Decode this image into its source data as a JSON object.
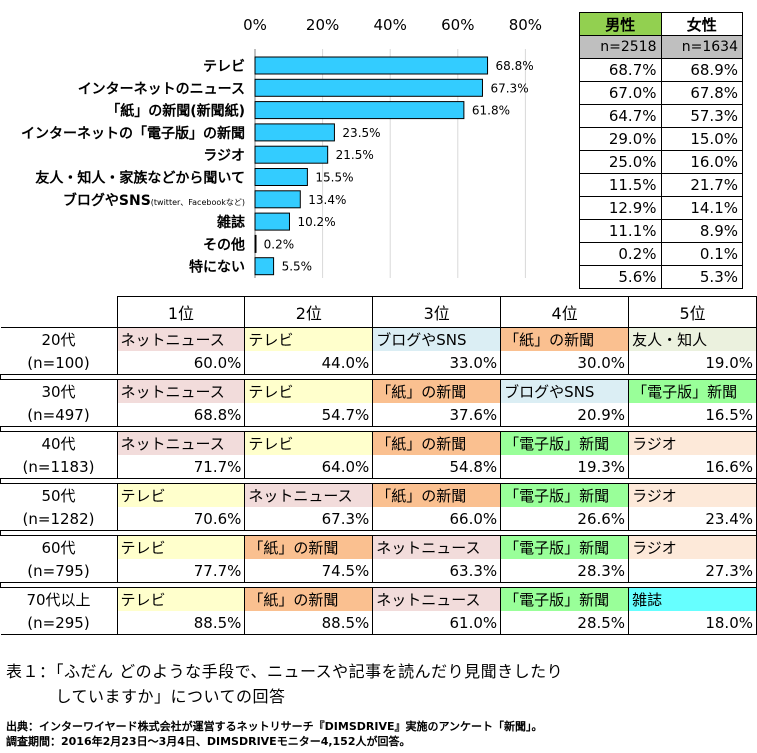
{
  "chart_data": {
    "type": "bar",
    "orientation": "horizontal",
    "x_ticks": [
      "0%",
      "20%",
      "40%",
      "60%",
      "80%"
    ],
    "xlim": [
      0,
      80
    ],
    "categories": [
      "テレビ",
      "インターネットのニュース",
      "「紙」の新聞(新聞紙)",
      "インターネットの「電子版」の新聞",
      "ラジオ",
      "友人・知人・家族などから聞いて",
      "ブログやSNS",
      "雑誌",
      "その他",
      "特にない"
    ],
    "category_note": {
      "index": 6,
      "text": "(twitter、Facebookなど)"
    },
    "values": [
      68.8,
      67.3,
      61.8,
      23.5,
      21.5,
      15.5,
      13.4,
      10.2,
      0.2,
      5.5
    ],
    "value_labels": [
      "68.8%",
      "67.3%",
      "61.8%",
      "23.5%",
      "21.5%",
      "15.5%",
      "13.4%",
      "10.2%",
      "0.2%",
      "5.5%"
    ],
    "bar_color": "#33ccff",
    "grid": true
  },
  "gender_table": {
    "headers": [
      "男性",
      "女性"
    ],
    "n": [
      "n=2518",
      "n=1634"
    ],
    "rows": [
      [
        "68.7%",
        "68.9%"
      ],
      [
        "67.0%",
        "67.8%"
      ],
      [
        "64.7%",
        "57.3%"
      ],
      [
        "29.0%",
        "15.0%"
      ],
      [
        "25.0%",
        "16.0%"
      ],
      [
        "11.5%",
        "21.7%"
      ],
      [
        "12.9%",
        "14.1%"
      ],
      [
        "11.1%",
        "8.9%"
      ],
      [
        "0.2%",
        "0.1%"
      ],
      [
        "5.6%",
        "5.3%"
      ]
    ],
    "header_male_color": "#92d050",
    "n_row_color": "#bfbfbf"
  },
  "age_table": {
    "headers": [
      "1位",
      "2位",
      "3位",
      "4位",
      "5位"
    ],
    "rows": [
      {
        "age": "20代",
        "n": "(n=100)",
        "cells": [
          {
            "label": "ネットニュース",
            "value": "60.0%",
            "color": "#f2dcdb"
          },
          {
            "label": "テレビ",
            "value": "44.0%",
            "color": "#ffffcc"
          },
          {
            "label": "ブログやSNS",
            "value": "33.0%",
            "color": "#dbeef4"
          },
          {
            "label": "「紙」の新聞",
            "value": "30.0%",
            "color": "#fac090"
          },
          {
            "label": "友人・知人",
            "value": "19.0%",
            "color": "#ebf1de"
          }
        ]
      },
      {
        "age": "30代",
        "n": "(n=497)",
        "cells": [
          {
            "label": "ネットニュース",
            "value": "68.8%",
            "color": "#f2dcdb"
          },
          {
            "label": "テレビ",
            "value": "54.7%",
            "color": "#ffffcc"
          },
          {
            "label": "「紙」の新聞",
            "value": "37.6%",
            "color": "#fac090"
          },
          {
            "label": "ブログやSNS",
            "value": "20.9%",
            "color": "#dbeef4"
          },
          {
            "label": "「電子版」新聞",
            "value": "16.5%",
            "color": "#99ff99"
          }
        ]
      },
      {
        "age": "40代",
        "n": "(n=1183)",
        "cells": [
          {
            "label": "ネットニュース",
            "value": "71.7%",
            "color": "#f2dcdb"
          },
          {
            "label": "テレビ",
            "value": "64.0%",
            "color": "#ffffcc"
          },
          {
            "label": "「紙」の新聞",
            "value": "54.8%",
            "color": "#fac090"
          },
          {
            "label": "「電子版」新聞",
            "value": "19.3%",
            "color": "#99ff99"
          },
          {
            "label": "ラジオ",
            "value": "16.6%",
            "color": "#fde9d9"
          }
        ]
      },
      {
        "age": "50代",
        "n": "(n=1282)",
        "cells": [
          {
            "label": "テレビ",
            "value": "70.6%",
            "color": "#ffffcc"
          },
          {
            "label": "ネットニュース",
            "value": "67.3%",
            "color": "#f2dcdb"
          },
          {
            "label": "「紙」の新聞",
            "value": "66.0%",
            "color": "#fac090"
          },
          {
            "label": "「電子版」新聞",
            "value": "26.6%",
            "color": "#99ff99"
          },
          {
            "label": "ラジオ",
            "value": "23.4%",
            "color": "#fde9d9"
          }
        ]
      },
      {
        "age": "60代",
        "n": "(n=795)",
        "cells": [
          {
            "label": "テレビ",
            "value": "77.7%",
            "color": "#ffffcc"
          },
          {
            "label": "「紙」の新聞",
            "value": "74.5%",
            "color": "#fac090"
          },
          {
            "label": "ネットニュース",
            "value": "63.3%",
            "color": "#f2dcdb"
          },
          {
            "label": "「電子版」新聞",
            "value": "28.3%",
            "color": "#99ff99"
          },
          {
            "label": "ラジオ",
            "value": "27.3%",
            "color": "#fde9d9"
          }
        ]
      },
      {
        "age": "70代以上",
        "n": "(n=295)",
        "cells": [
          {
            "label": "テレビ",
            "value": "88.5%",
            "color": "#ffffcc"
          },
          {
            "label": "「紙」の新聞",
            "value": "88.5%",
            "color": "#fac090"
          },
          {
            "label": "ネットニュース",
            "value": "61.0%",
            "color": "#f2dcdb"
          },
          {
            "label": "「電子版」新聞",
            "value": "28.5%",
            "color": "#99ff99"
          },
          {
            "label": "雑誌",
            "value": "18.0%",
            "color": "#66ffff"
          }
        ]
      }
    ]
  },
  "caption": {
    "line1": "表１：「ふだん どのような手段で、ニュースや記事を読んだり見聞きしたり",
    "line2": "　　　していますか」についての回答"
  },
  "source": {
    "line1": "出典：インターワイヤード株式会社が運営するネットリサーチ『DIMSDRIVE』実施のアンケート「新聞」。",
    "line2": "調査期間：2016年2月23日～3月4日、DIMSDRIVEモニター4,152人が回答。"
  }
}
